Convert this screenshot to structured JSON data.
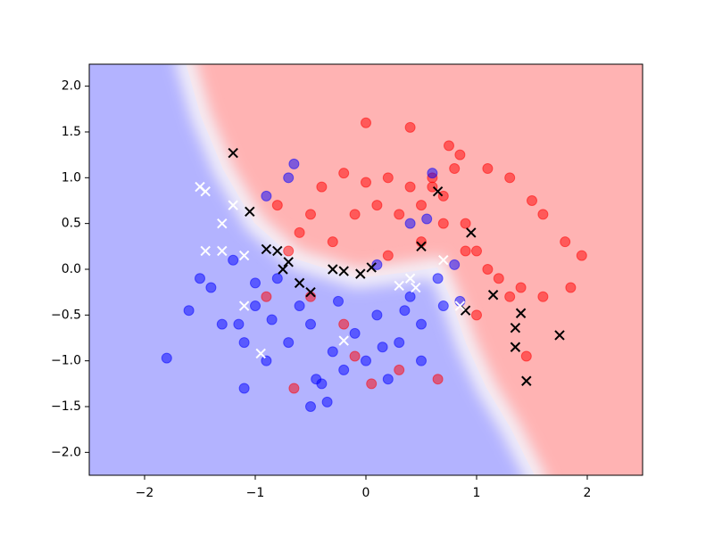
{
  "chart_data": {
    "type": "scatter",
    "xlim": [
      -2.5,
      2.5
    ],
    "ylim": [
      -2.25,
      2.24
    ],
    "xticks": [
      {
        "value": -2,
        "label": "−2"
      },
      {
        "value": -1,
        "label": "−1"
      },
      0,
      1,
      2
    ],
    "yticks": [
      {
        "value": -2.0,
        "label": "−2.0"
      },
      {
        "value": -1.5,
        "label": "−1.5"
      },
      {
        "value": -1.0,
        "label": "−1.0"
      },
      {
        "value": -0.5,
        "label": "−0.5"
      },
      {
        "value": 0.0,
        "label": "0.0"
      },
      {
        "value": 0.5,
        "label": "0.5"
      },
      {
        "value": 1.0,
        "label": "1.0"
      },
      {
        "value": 1.5,
        "label": "1.5"
      },
      {
        "value": 2.0,
        "label": "2.0"
      }
    ],
    "grid": false,
    "series": [
      {
        "color": "#ff0000",
        "marker": "o",
        "x": [
          0.0,
          0.4,
          0.75,
          0.85,
          1.1,
          1.3,
          1.5,
          1.6,
          1.8,
          1.95,
          1.85,
          1.6,
          1.4,
          1.2,
          1.0,
          0.9,
          0.7,
          0.6,
          0.4,
          0.2,
          0.0,
          -0.2,
          -0.4,
          -0.5,
          -0.6,
          -0.8,
          -0.7,
          -0.3,
          -0.1,
          0.1,
          0.3,
          0.5,
          0.7,
          0.9,
          1.1,
          1.3,
          1.45,
          0.5,
          0.6,
          0.8,
          -0.9,
          -0.5,
          -0.2,
          0.3,
          0.65,
          -0.65,
          0.05,
          -0.1,
          1.0,
          0.2
        ],
        "values": [
          1.6,
          1.55,
          1.35,
          1.25,
          1.1,
          1.0,
          0.75,
          0.6,
          0.3,
          0.15,
          -0.2,
          -0.3,
          -0.2,
          -0.1,
          0.2,
          0.5,
          0.8,
          1.0,
          0.9,
          1.0,
          0.95,
          1.05,
          0.9,
          0.6,
          0.4,
          0.7,
          0.2,
          0.3,
          0.6,
          0.7,
          0.6,
          0.7,
          0.5,
          0.2,
          0.0,
          -0.3,
          -0.95,
          0.3,
          0.9,
          1.1,
          -0.3,
          -0.3,
          -0.6,
          -1.1,
          -1.2,
          -1.3,
          -1.25,
          -0.95,
          -0.5,
          0.15
        ]
      },
      {
        "color": "#0000ff",
        "marker": "o",
        "x": [
          -1.8,
          -1.6,
          -1.4,
          -1.3,
          -1.1,
          -1.0,
          -0.9,
          -0.7,
          -0.5,
          -0.3,
          -0.1,
          0.1,
          0.3,
          0.5,
          0.7,
          0.85,
          -0.2,
          0.0,
          -0.45,
          -0.5,
          -0.4,
          -1.1,
          0.2,
          0.5,
          0.4,
          -0.8,
          -1.2,
          -1.5,
          -0.9,
          -0.7,
          -0.65,
          0.6,
          0.55,
          0.4,
          0.1,
          -1.15,
          -0.6,
          -0.25,
          0.15,
          0.35,
          -0.85,
          -1.0,
          0.8,
          0.65,
          -0.35
        ],
        "values": [
          -0.97,
          -0.45,
          -0.2,
          -0.6,
          -0.8,
          -0.4,
          -1.0,
          -0.8,
          -0.6,
          -0.9,
          -0.7,
          -0.5,
          -0.8,
          -0.6,
          -0.4,
          -0.35,
          -1.1,
          -1.0,
          -1.2,
          -1.5,
          -1.25,
          -1.3,
          -1.2,
          -1.0,
          -0.3,
          -0.1,
          0.1,
          -0.1,
          0.8,
          1.0,
          1.15,
          1.05,
          0.55,
          0.5,
          0.05,
          -0.6,
          -0.4,
          -0.35,
          -0.85,
          -0.45,
          -0.55,
          -0.15,
          0.05,
          -0.1,
          -1.45
        ]
      },
      {
        "color": "#000000",
        "marker": "x",
        "x": [
          -1.2,
          -1.05,
          -0.9,
          -0.8,
          -0.7,
          -0.75,
          -0.6,
          -0.5,
          -0.3,
          -0.2,
          -0.05,
          0.05,
          0.5,
          0.65,
          0.95,
          0.9,
          1.15,
          1.4,
          1.35,
          1.35,
          1.45,
          1.75
        ],
        "values": [
          1.27,
          0.63,
          0.22,
          0.2,
          0.08,
          0.0,
          -0.15,
          -0.25,
          0.0,
          -0.02,
          -0.05,
          0.02,
          0.25,
          0.85,
          0.4,
          -0.45,
          -0.28,
          -0.48,
          -0.64,
          -0.85,
          -1.22,
          -0.72
        ]
      },
      {
        "color": "#ffffff",
        "marker": "x",
        "x": [
          -1.5,
          -1.45,
          -1.3,
          -1.2,
          -1.3,
          -1.1,
          -1.1,
          -0.95,
          -0.2,
          0.3,
          0.4,
          0.7,
          0.85,
          -1.45,
          0.45
        ],
        "values": [
          0.9,
          0.85,
          0.5,
          0.7,
          0.2,
          0.15,
          -0.4,
          -0.92,
          -0.78,
          -0.18,
          -0.1,
          0.1,
          -0.4,
          0.2,
          -0.2
        ]
      }
    ]
  }
}
